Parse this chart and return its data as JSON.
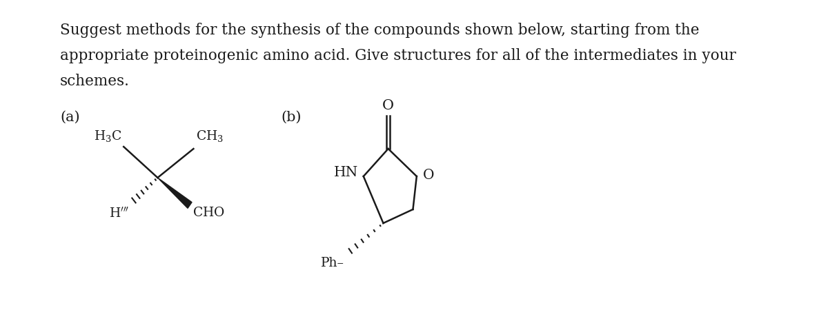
{
  "title_lines": [
    "Suggest methods for the synthesis of the compounds shown below, starting from the",
    "appropriate proteinogenic amino acid. Give structures for all of the intermediates in your",
    "schemes."
  ],
  "label_a": "(a)",
  "label_b": "(b)",
  "bg_color": "#ffffff",
  "text_color": "#1a1a1a",
  "font_size_body": 15.5,
  "font_size_label": 15.0,
  "font_size_chem": 13.5
}
